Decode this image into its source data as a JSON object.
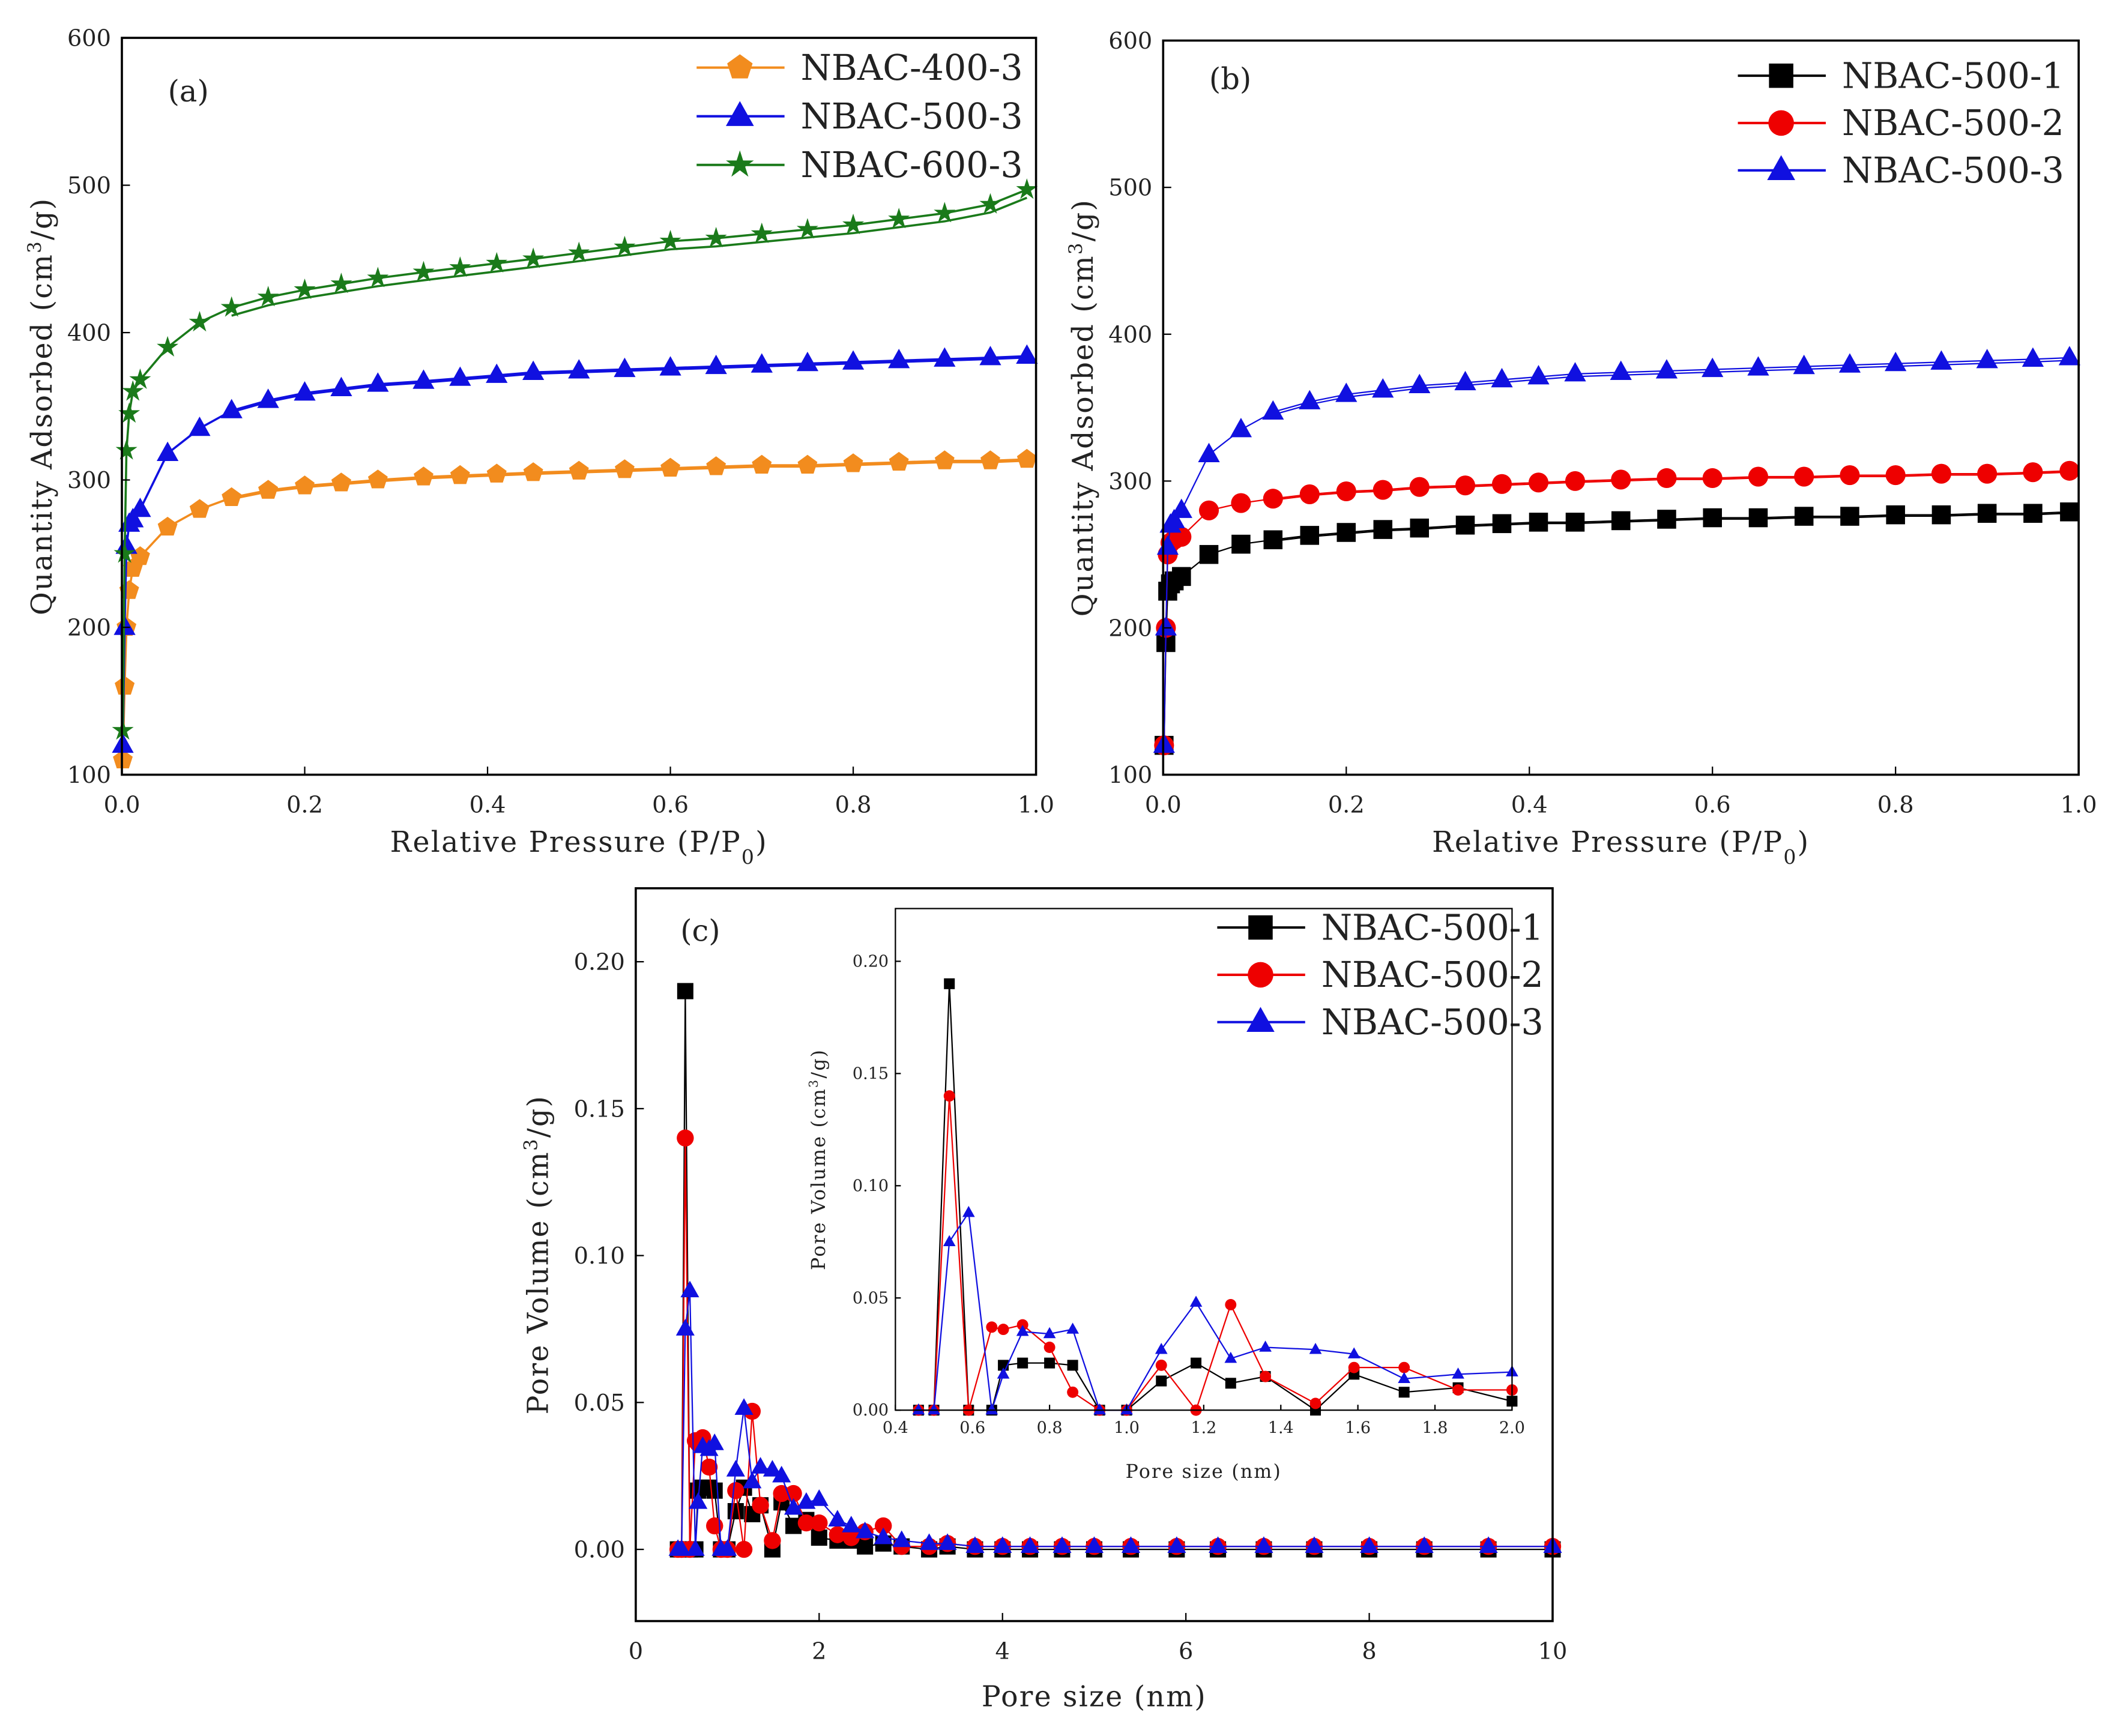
{
  "chart_data": [
    {
      "id": "a",
      "type": "line",
      "panel_label": "(a)",
      "xlabel": "Relative Pressure (P/P",
      "xlabel_sub": "0",
      "xlabel_end": ")",
      "ylabel": "Quantity Adsorbed (cm",
      "ylabel_sup": "3",
      "ylabel_end": "/g)",
      "xlim": [
        0,
        1
      ],
      "ylim": [
        100,
        600
      ],
      "xticks": [
        "0.0",
        "0.2",
        "0.4",
        "0.6",
        "0.8",
        "1.0"
      ],
      "yticks": [
        "100",
        "200",
        "300",
        "400",
        "500",
        "600"
      ],
      "legend_position": "top-right",
      "x": [
        0.001,
        0.003,
        0.005,
        0.008,
        0.012,
        0.02,
        0.05,
        0.085,
        0.12,
        0.16,
        0.2,
        0.24,
        0.28,
        0.33,
        0.37,
        0.41,
        0.45,
        0.5,
        0.55,
        0.6,
        0.65,
        0.7,
        0.75,
        0.8,
        0.85,
        0.9,
        0.95,
        0.99
      ],
      "series": [
        {
          "name": "NBAC-400-3",
          "color": "#f28c1e",
          "marker": "pentagon",
          "values": [
            110,
            160,
            200,
            225,
            240,
            248,
            268,
            280,
            288,
            293,
            296,
            298,
            300,
            302,
            303,
            304,
            305,
            306,
            307,
            308,
            309,
            310,
            310,
            311,
            312,
            313,
            313,
            314
          ]
        },
        {
          "name": "NBAC-500-3",
          "color": "#1010e0",
          "marker": "triangle",
          "values": [
            120,
            200,
            255,
            270,
            273,
            280,
            318,
            335,
            347,
            354,
            359,
            362,
            365,
            367,
            369,
            371,
            373,
            374,
            375,
            376,
            377,
            378,
            379,
            380,
            381,
            382,
            383,
            384
          ]
        },
        {
          "name": "NBAC-600-3",
          "color": "#1a7a1a",
          "marker": "star",
          "values": [
            130,
            250,
            320,
            345,
            360,
            368,
            390,
            407,
            417,
            424,
            429,
            433,
            437,
            441,
            444,
            447,
            450,
            454,
            458,
            462,
            464,
            467,
            470,
            473,
            477,
            481,
            487,
            497
          ]
        }
      ]
    },
    {
      "id": "b",
      "type": "line",
      "panel_label": "(b)",
      "xlabel": "Relative Pressure (P/P",
      "xlabel_sub": "0",
      "xlabel_end": ")",
      "ylabel": "Quantity Adsorbed (cm",
      "ylabel_sup": "3",
      "ylabel_end": "/g)",
      "xlim": [
        0,
        1
      ],
      "ylim": [
        100,
        600
      ],
      "xticks": [
        "0.0",
        "0.2",
        "0.4",
        "0.6",
        "0.8",
        "1.0"
      ],
      "yticks": [
        "100",
        "200",
        "300",
        "400",
        "500",
        "600"
      ],
      "legend_position": "top-right",
      "x": [
        0.001,
        0.003,
        0.005,
        0.008,
        0.012,
        0.02,
        0.05,
        0.085,
        0.12,
        0.16,
        0.2,
        0.24,
        0.28,
        0.33,
        0.37,
        0.41,
        0.45,
        0.5,
        0.55,
        0.6,
        0.65,
        0.7,
        0.75,
        0.8,
        0.85,
        0.9,
        0.95,
        0.99
      ],
      "series": [
        {
          "name": "NBAC-500-1",
          "color": "#000000",
          "marker": "square",
          "values": [
            120,
            190,
            225,
            230,
            232,
            235,
            250,
            257,
            260,
            263,
            265,
            267,
            268,
            270,
            271,
            272,
            272,
            273,
            274,
            275,
            275,
            276,
            276,
            277,
            277,
            278,
            278,
            279
          ]
        },
        {
          "name": "NBAC-500-2",
          "color": "#ee0000",
          "marker": "circle",
          "values": [
            120,
            200,
            250,
            258,
            260,
            262,
            280,
            285,
            288,
            291,
            293,
            294,
            296,
            297,
            298,
            299,
            300,
            301,
            302,
            302,
            303,
            303,
            304,
            304,
            305,
            305,
            306,
            307
          ]
        },
        {
          "name": "NBAC-500-3",
          "color": "#1010e0",
          "marker": "triangle",
          "values": [
            120,
            200,
            255,
            270,
            273,
            280,
            318,
            335,
            347,
            354,
            359,
            362,
            365,
            367,
            369,
            371,
            373,
            374,
            375,
            376,
            377,
            378,
            379,
            380,
            381,
            382,
            383,
            384
          ]
        }
      ]
    },
    {
      "id": "c",
      "type": "line",
      "panel_label": "(c)",
      "xlabel": "Pore size (nm)",
      "ylabel": "Pore Volume (cm",
      "ylabel_sup": "3",
      "ylabel_end": "/g)",
      "xlim": [
        0,
        10
      ],
      "ylim": [
        -0.0244,
        0.225
      ],
      "xticks": [
        "0",
        "2",
        "4",
        "6",
        "8",
        "10"
      ],
      "yticks": [
        "0.00",
        "0.05",
        "0.10",
        "0.15",
        "0.20"
      ],
      "legend_position": "top-right",
      "x": [
        0.46,
        0.5,
        0.54,
        0.59,
        0.65,
        0.68,
        0.73,
        0.8,
        0.86,
        0.93,
        1.0,
        1.09,
        1.18,
        1.27,
        1.36,
        1.49,
        1.59,
        1.72,
        1.86,
        2.0,
        2.2,
        2.35,
        2.5,
        2.7,
        2.9,
        3.2,
        3.4,
        3.7,
        4.0,
        4.3,
        4.65,
        5.0,
        5.4,
        5.9,
        6.35,
        6.85,
        7.4,
        8.0,
        8.6,
        9.3,
        10
      ],
      "series": [
        {
          "name": "NBAC-500-1",
          "color": "#000000",
          "marker": "square",
          "values": [
            0,
            0,
            0.19,
            0,
            0,
            0.02,
            0.021,
            0.021,
            0.02,
            0,
            0,
            0.013,
            0.021,
            0.012,
            0.015,
            0,
            0.016,
            0.008,
            0.01,
            0.004,
            0.003,
            0.003,
            0.001,
            0.002,
            0.001,
            0,
            0.001,
            0,
            0,
            0,
            0,
            0,
            0,
            0,
            0,
            0,
            0,
            0,
            0,
            0,
            0
          ]
        },
        {
          "name": "NBAC-500-2",
          "color": "#ee0000",
          "marker": "circle",
          "values": [
            0,
            0,
            0.14,
            0,
            0.037,
            0.036,
            0.038,
            0.028,
            0.008,
            0,
            0,
            0.02,
            0,
            0.047,
            0.015,
            0.003,
            0.019,
            0.019,
            0.009,
            0.009,
            0.005,
            0.004,
            0.006,
            0.008,
            0.001,
            0.001,
            0.002,
            0.001,
            0.001,
            0.001,
            0.001,
            0.001,
            0.001,
            0.001,
            0.001,
            0.001,
            0.001,
            0.001,
            0.001,
            0.001,
            0.001
          ]
        },
        {
          "name": "NBAC-500-3",
          "color": "#1010e0",
          "marker": "triangle",
          "values": [
            0,
            0,
            0.075,
            0.088,
            0,
            0.016,
            0.035,
            0.034,
            0.036,
            0,
            0,
            0.027,
            0.048,
            0.023,
            0.028,
            0.027,
            0.025,
            0.014,
            0.016,
            0.017,
            0.01,
            0.008,
            0.006,
            0.004,
            0.003,
            0.002,
            0.002,
            0.001,
            0.001,
            0.001,
            0.001,
            0.001,
            0.001,
            0.001,
            0.001,
            0.001,
            0.001,
            0.001,
            0.001,
            0.001,
            0.001
          ]
        }
      ]
    },
    {
      "id": "c-inset",
      "type": "line",
      "xlabel": "Pore size (nm)",
      "ylabel": "Pore Volume (cm",
      "ylabel_sup": "3",
      "ylabel_end": "/g)",
      "xlim": [
        0.4,
        2.0
      ],
      "ylim": [
        0,
        0.2235
      ],
      "xticks": [
        "0.4",
        "0.6",
        "0.8",
        "1.0",
        "1.2",
        "1.4",
        "1.6",
        "1.8",
        "2.0"
      ],
      "yticks": [
        "0.00",
        "0.05",
        "0.10",
        "0.15",
        "0.20"
      ],
      "source_series": "c",
      "x_max": 2.0
    }
  ]
}
